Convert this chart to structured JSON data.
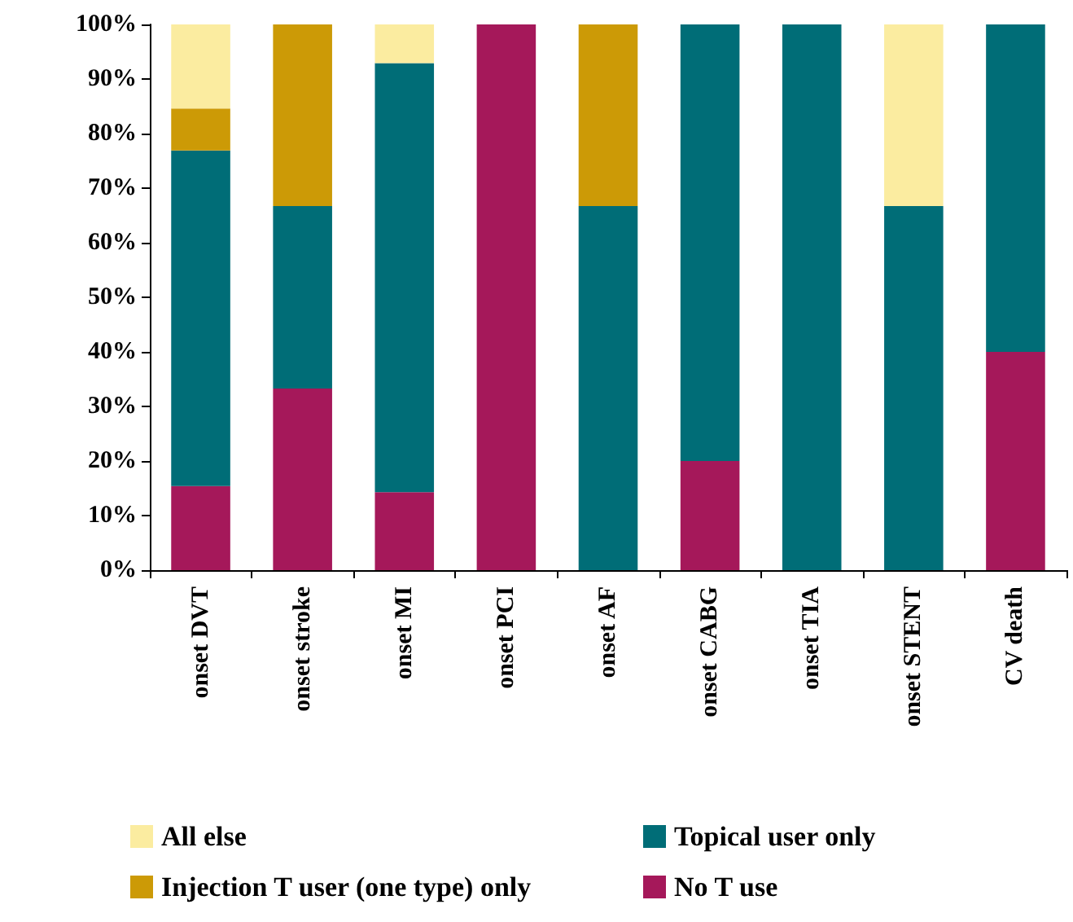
{
  "chart_data": {
    "type": "bar",
    "stacked": true,
    "categories": [
      "onset DVT",
      "onset stroke",
      "onset MI",
      "onset PCI",
      "onset AF",
      "onset CABG",
      "onset TIA",
      "onset STENT",
      "CV death"
    ],
    "series": [
      {
        "name": "No T use",
        "color": "#a5185a",
        "values": [
          15.4,
          33.3,
          14.3,
          100,
          0,
          20,
          0,
          0,
          40
        ]
      },
      {
        "name": "Topical user only",
        "color": "#006d77",
        "values": [
          61.5,
          33.4,
          78.6,
          0,
          66.7,
          80,
          100,
          66.7,
          60
        ]
      },
      {
        "name": "Injection T user (one type) only",
        "color": "#cc9a06",
        "values": [
          7.7,
          33.3,
          0,
          0,
          33.3,
          0,
          0,
          0,
          0
        ]
      },
      {
        "name": "All else",
        "color": "#fbeca0",
        "values": [
          15.4,
          0,
          7.1,
          0,
          0,
          0,
          0,
          33.3,
          0
        ]
      }
    ],
    "ylim": [
      0,
      100
    ],
    "yticks": [
      {
        "value": 0,
        "label": "0%"
      },
      {
        "value": 10,
        "label": "10%"
      },
      {
        "value": 20,
        "label": "20%"
      },
      {
        "value": 30,
        "label": "30%"
      },
      {
        "value": 40,
        "label": "40%"
      },
      {
        "value": 50,
        "label": "50%"
      },
      {
        "value": 60,
        "label": "60%"
      },
      {
        "value": 70,
        "label": "70%"
      },
      {
        "value": 80,
        "label": "80%"
      },
      {
        "value": 90,
        "label": "90%"
      },
      {
        "value": 100,
        "label": "100%"
      }
    ],
    "grid": false,
    "legend": "bottom"
  }
}
